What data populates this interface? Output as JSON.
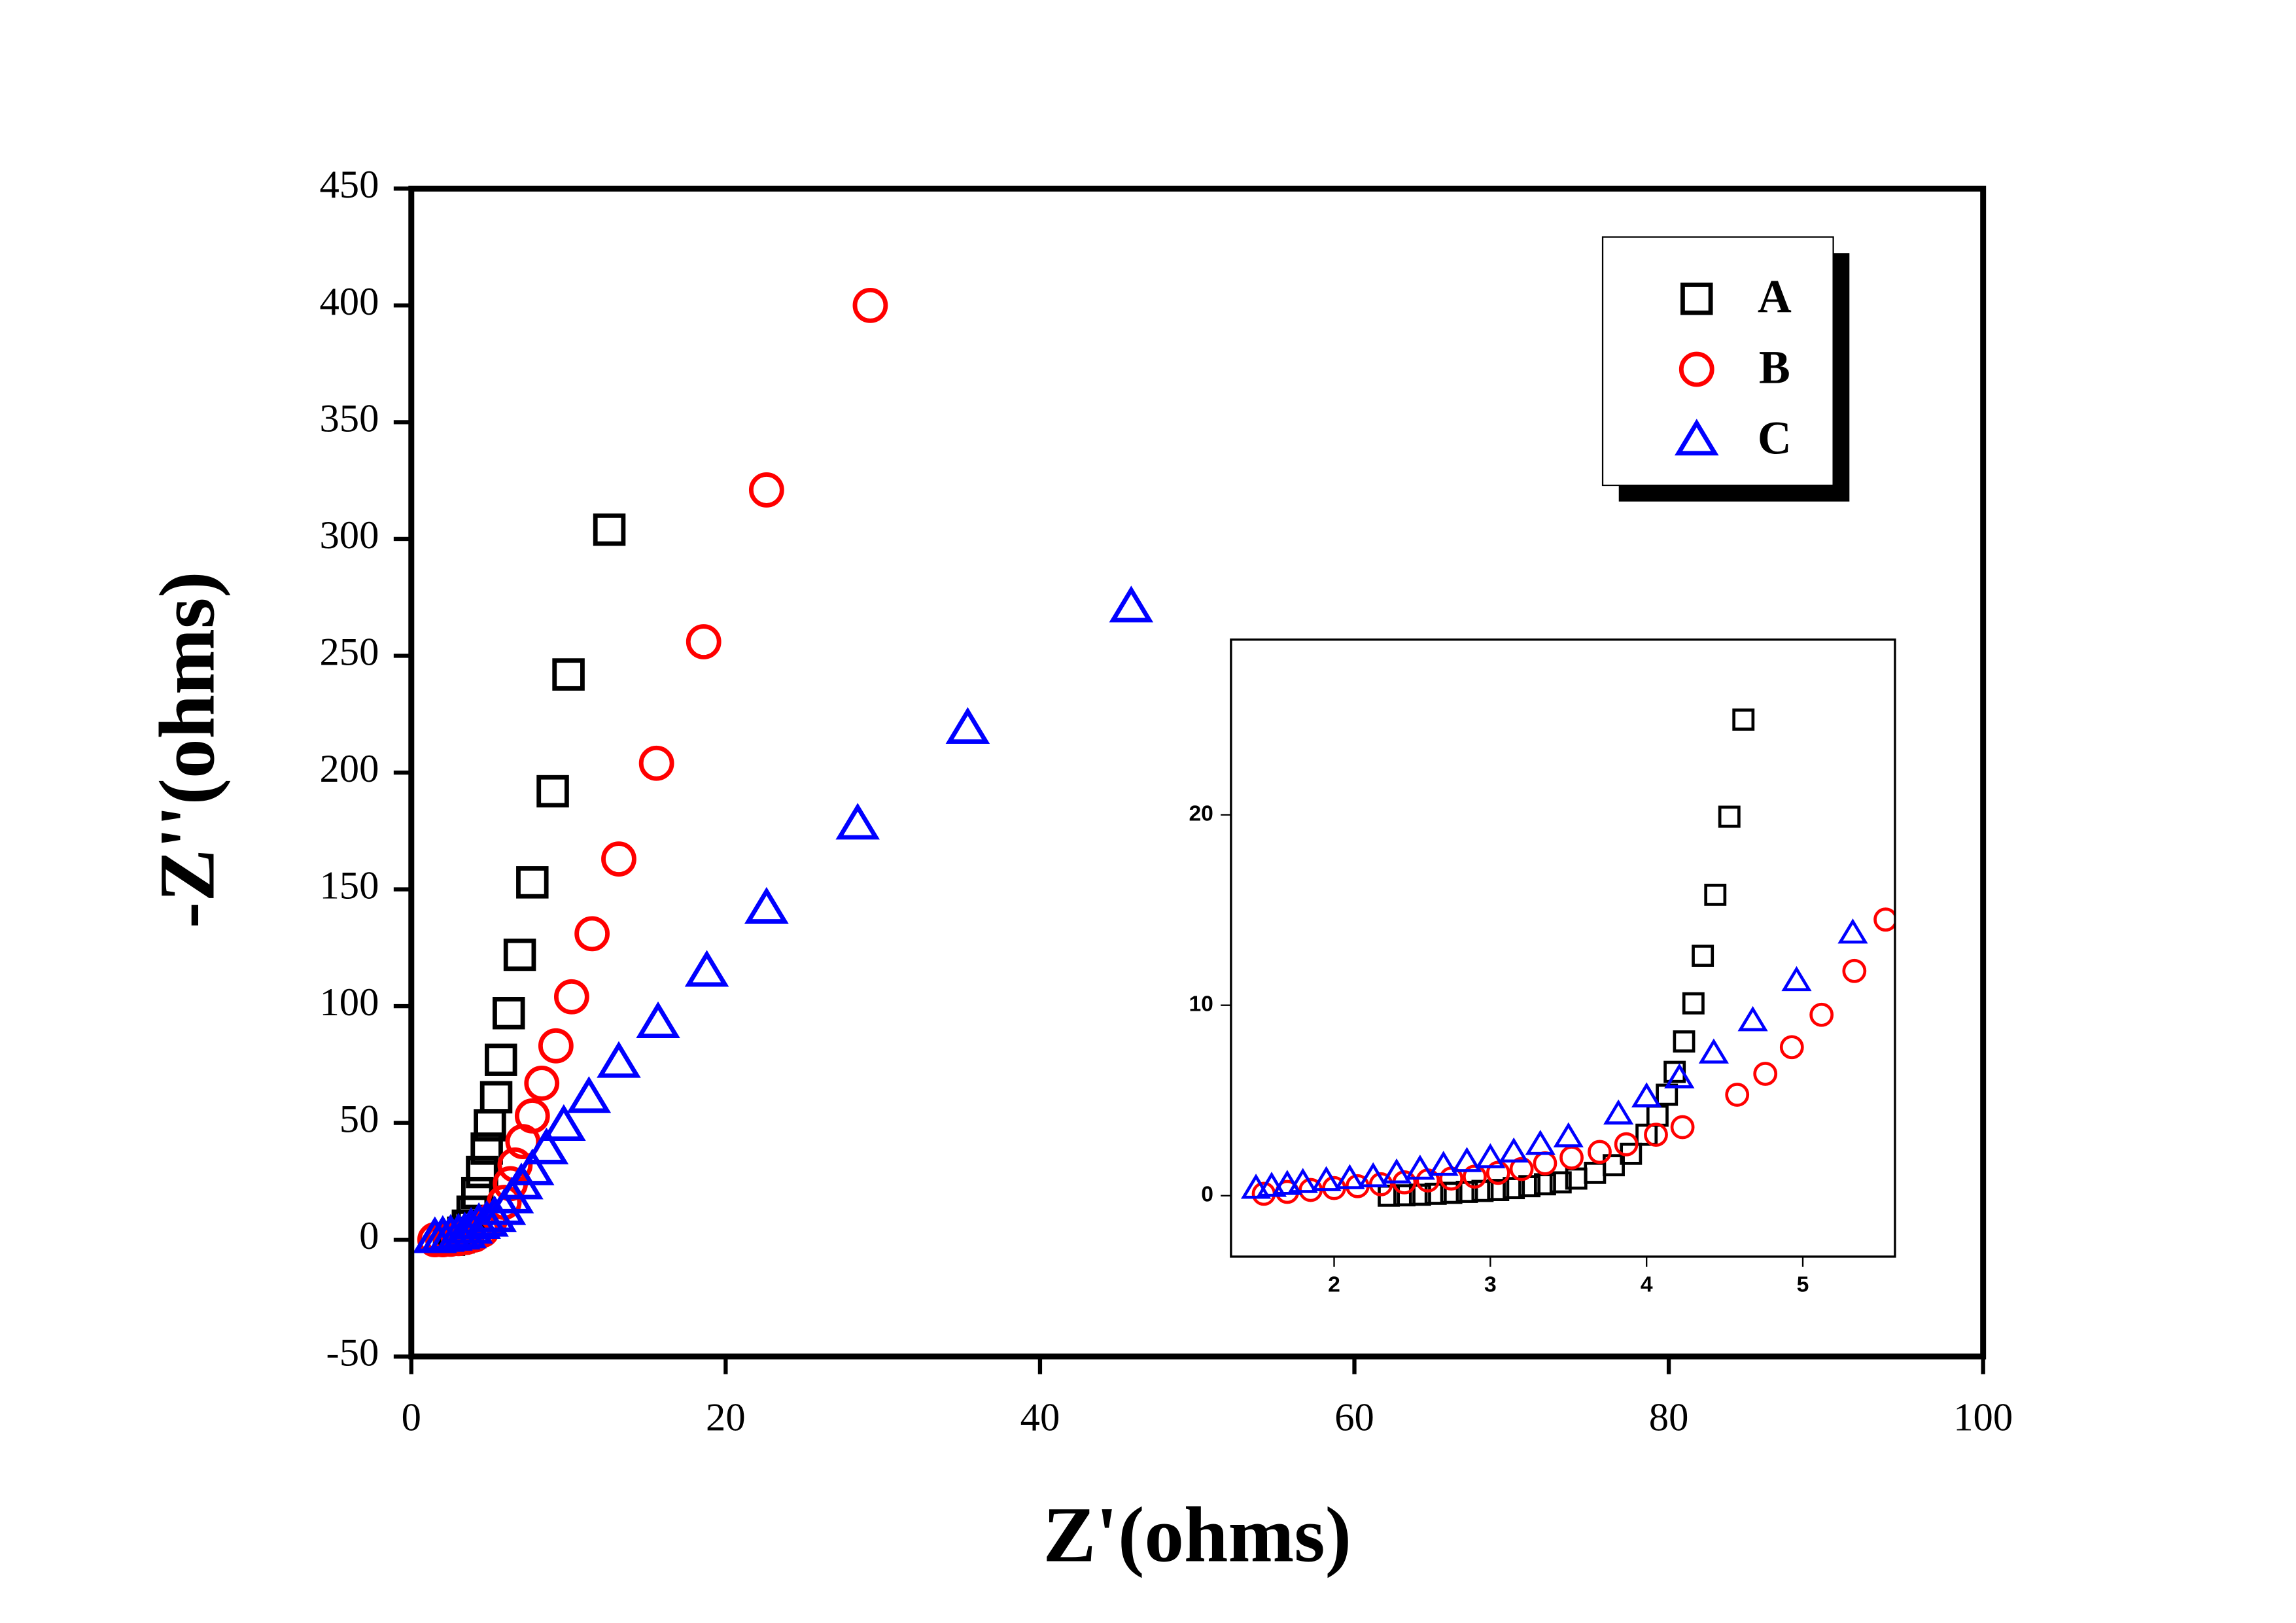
{
  "chart_data": [
    {
      "type": "scatter",
      "x_label": "Z'(ohms)",
      "y_label": "-Z''(ohms)",
      "xlim": [
        0,
        100
      ],
      "xticks": [
        0,
        20,
        40,
        60,
        80,
        100
      ],
      "ylim": [
        -50,
        450
      ],
      "yticks": [
        -50,
        0,
        50,
        100,
        150,
        200,
        250,
        300,
        350,
        400,
        450
      ],
      "legend": "upper right",
      "series": [
        {
          "name": "A",
          "color": "#000000",
          "marker": "square",
          "x": [
            12.6,
            10.0,
            9.0,
            7.7,
            6.9,
            6.2,
            5.7,
            5.4,
            5.0,
            4.8,
            4.5,
            4.2,
            3.9,
            3.6,
            3.3,
            3.0,
            2.7,
            2.4
          ],
          "y": [
            304,
            242,
            192,
            153,
            122,
            97,
            77,
            61,
            49,
            39,
            29,
            20,
            12,
            6,
            3,
            1,
            0.5,
            0
          ]
        },
        {
          "name": "B",
          "color": "#ff0000",
          "marker": "circle",
          "x": [
            29.2,
            22.6,
            18.6,
            15.6,
            13.2,
            11.5,
            10.2,
            9.2,
            8.3,
            7.7,
            7.1,
            6.6,
            6.3,
            5.9,
            5.0,
            4.5,
            4.0,
            3.5,
            3.0,
            2.5,
            2.0,
            1.5
          ],
          "y": [
            400,
            321,
            256,
            204,
            163,
            131,
            104,
            83,
            67,
            53,
            42,
            32,
            24,
            16,
            8,
            4,
            2,
            1,
            0.5,
            0.2,
            0,
            0
          ]
        },
        {
          "name": "C",
          "color": "#0000ff",
          "marker": "triangle",
          "x": [
            45.8,
            35.4,
            28.4,
            22.6,
            18.8,
            15.7,
            13.2,
            11.3,
            9.7,
            8.6,
            7.7,
            7.0,
            6.4,
            5.9,
            5.3,
            4.8,
            4.3,
            3.8,
            3.4,
            3.0,
            2.5,
            2.0,
            1.5
          ],
          "y": [
            271,
            219,
            178,
            142,
            115,
            93,
            76,
            61,
            49,
            39,
            30,
            24,
            18,
            13,
            10,
            8,
            7,
            5,
            3,
            2.5,
            2,
            1.5,
            1
          ]
        }
      ]
    },
    {
      "type": "scatter",
      "xlim": [
        1.34,
        5.59
      ],
      "xticks": [
        2,
        3,
        4,
        5
      ],
      "ylim": [
        -3.2,
        29.2
      ],
      "yticks": [
        0,
        10,
        20
      ],
      "series": [
        {
          "color": "#000000",
          "marker": "square",
          "x": [
            4.62,
            4.53,
            4.44,
            4.36,
            4.3,
            4.24,
            4.18,
            4.13,
            4.07,
            4.0,
            3.9,
            3.79,
            3.67,
            3.55,
            3.45,
            3.35,
            3.25,
            3.15,
            3.05,
            2.95,
            2.85,
            2.75,
            2.65,
            2.55,
            2.45,
            2.35
          ],
          "y": [
            25,
            19.9,
            15.8,
            12.6,
            10.1,
            8.1,
            6.5,
            5.3,
            4.2,
            3.2,
            2.2,
            1.6,
            1.2,
            0.9,
            0.7,
            0.6,
            0.5,
            0.4,
            0.3,
            0.25,
            0.2,
            0.15,
            0.1,
            0.05,
            0.02,
            0
          ]
        },
        {
          "color": "#ff0000",
          "marker": "circle",
          "x": [
            5.53,
            5.33,
            5.12,
            4.93,
            4.76,
            4.58,
            4.23,
            4.06,
            3.87,
            3.7,
            3.52,
            3.35,
            3.2,
            3.05,
            2.9,
            2.75,
            2.6,
            2.45,
            2.3,
            2.15,
            2.0,
            1.85,
            1.7,
            1.55
          ],
          "y": [
            14.5,
            11.8,
            9.5,
            7.8,
            6.4,
            5.3,
            3.6,
            3.2,
            2.7,
            2.3,
            2.0,
            1.7,
            1.4,
            1.2,
            1.0,
            0.9,
            0.8,
            0.7,
            0.6,
            0.5,
            0.4,
            0.3,
            0.2,
            0.1
          ]
        },
        {
          "color": "#0000ff",
          "marker": "triangle",
          "x": [
            5.32,
            4.96,
            4.68,
            4.43,
            4.21,
            4.0,
            3.82,
            3.5,
            3.32,
            3.15,
            3.0,
            2.85,
            2.7,
            2.55,
            2.4,
            2.25,
            2.1,
            1.95,
            1.8,
            1.7,
            1.6,
            1.5
          ],
          "y": [
            13.8,
            11.3,
            9.2,
            7.5,
            6.2,
            5.2,
            4.3,
            3.1,
            2.7,
            2.3,
            2.0,
            1.8,
            1.6,
            1.4,
            1.2,
            1.0,
            0.9,
            0.8,
            0.7,
            0.6,
            0.5,
            0.4
          ]
        }
      ]
    }
  ]
}
